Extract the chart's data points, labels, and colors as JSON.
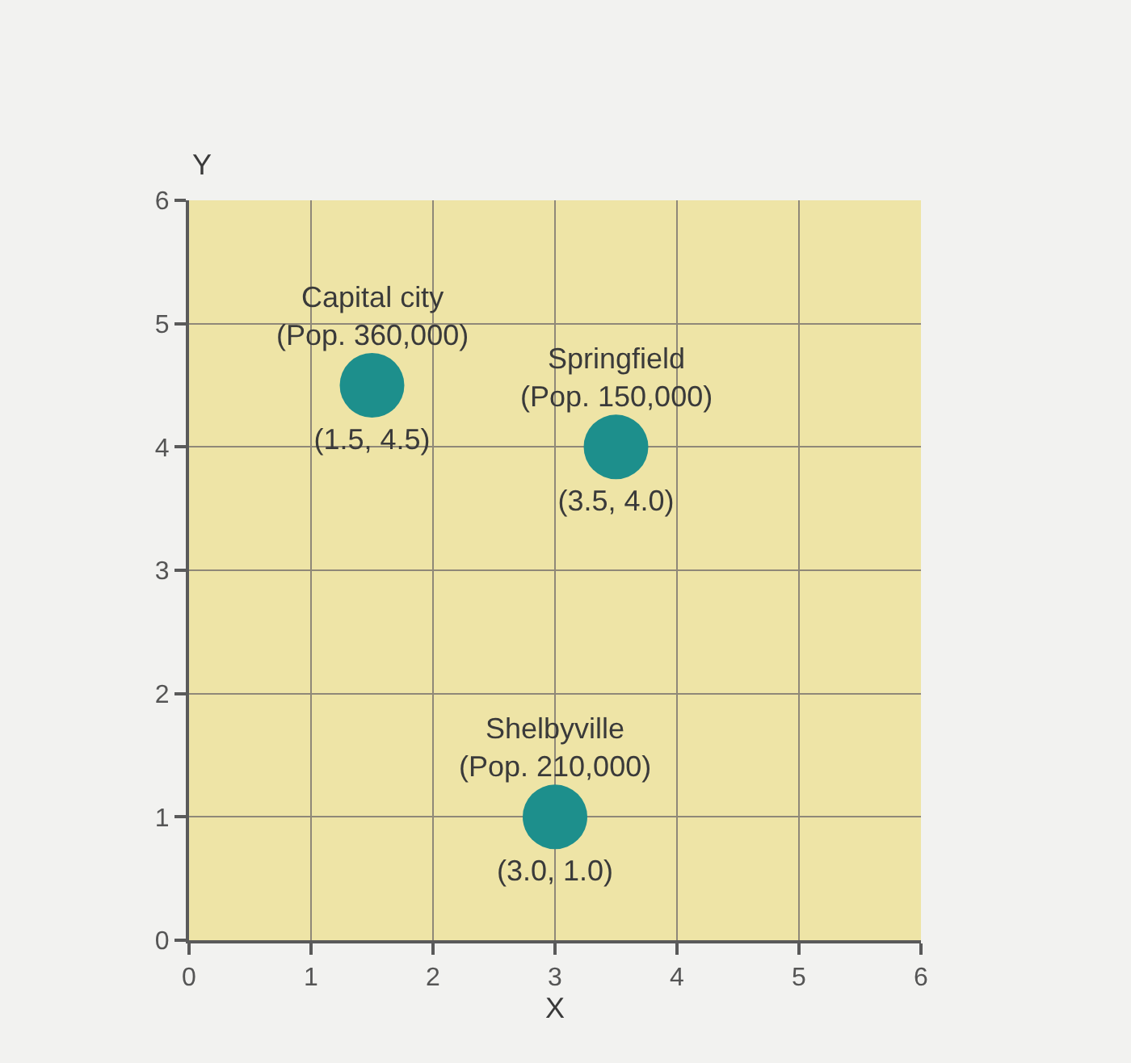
{
  "chart_data": {
    "type": "scatter",
    "xlabel": "X",
    "ylabel": "Y",
    "x": [
      1.5,
      3.5,
      3.0
    ],
    "series": [
      {
        "color": "#1d8f8c",
        "values": [
          4.5,
          4.0,
          1.0
        ],
        "value_labels": [
          "(1.5, 4.5)",
          "(3.5, 4.0)",
          "(3.0, 1.0)"
        ]
      }
    ],
    "annotations": [
      {
        "text": "Capital city\n(Pop. 360,000)",
        "x": 1.5,
        "y": 4.5
      },
      {
        "text": "Springfield\n(Pop. 150,000)",
        "x": 3.5,
        "y": 4.0
      },
      {
        "text": "Shelbyville\n(Pop. 210,000)",
        "x": 3.0,
        "y": 1.0
      }
    ],
    "xlim": [
      0,
      6
    ],
    "ylim": [
      0,
      6
    ],
    "xticks": [
      0,
      1,
      2,
      3,
      4,
      5,
      6
    ],
    "yticks": [
      0,
      1,
      2,
      3,
      4,
      5,
      6
    ],
    "grid": true,
    "marker": "circle"
  }
}
